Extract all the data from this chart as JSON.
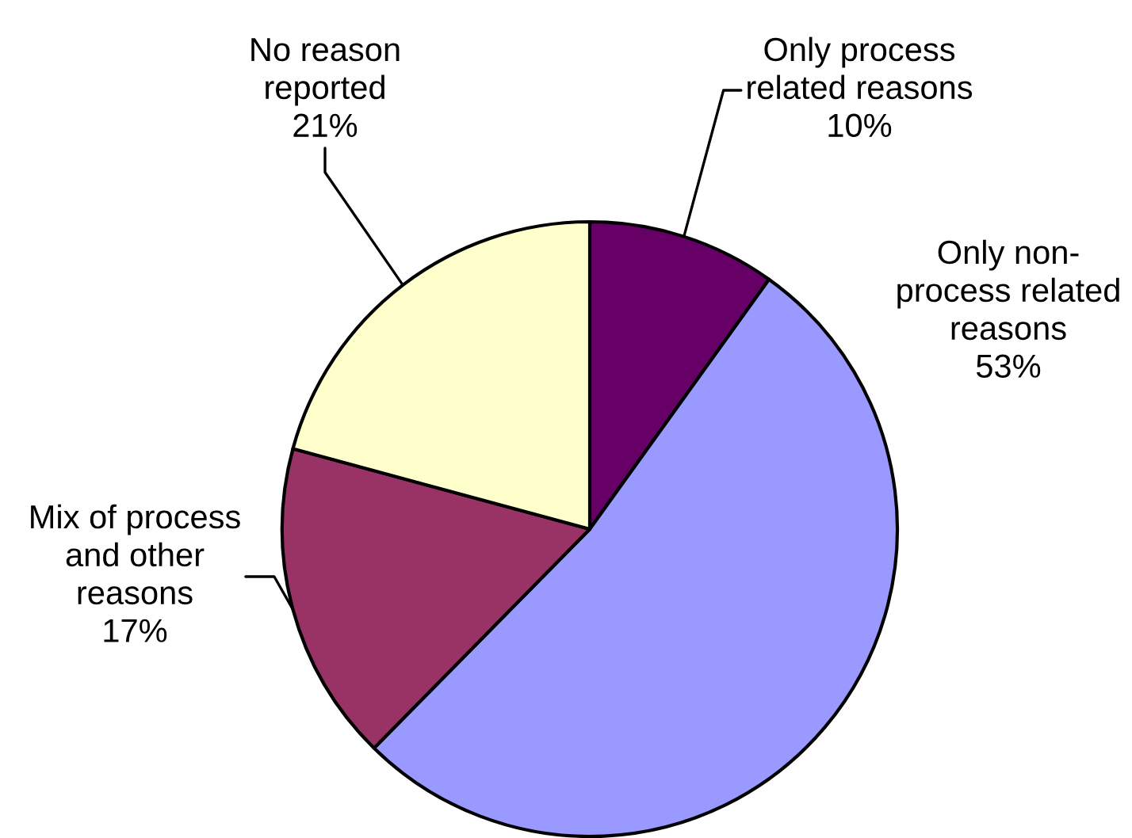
{
  "chart_data": {
    "type": "pie",
    "categories": [
      "Only process\nrelated reasons",
      "Only non-\nprocess related\nreasons",
      "Mix of process\nand other\nreasons",
      "No reason\nreported"
    ],
    "values": [
      10,
      53,
      17,
      21
    ],
    "colors": [
      "#660066",
      "#9999ff",
      "#993366",
      "#ffffcc"
    ],
    "value_labels": [
      "10%",
      "53%",
      "17%",
      "21%"
    ]
  }
}
